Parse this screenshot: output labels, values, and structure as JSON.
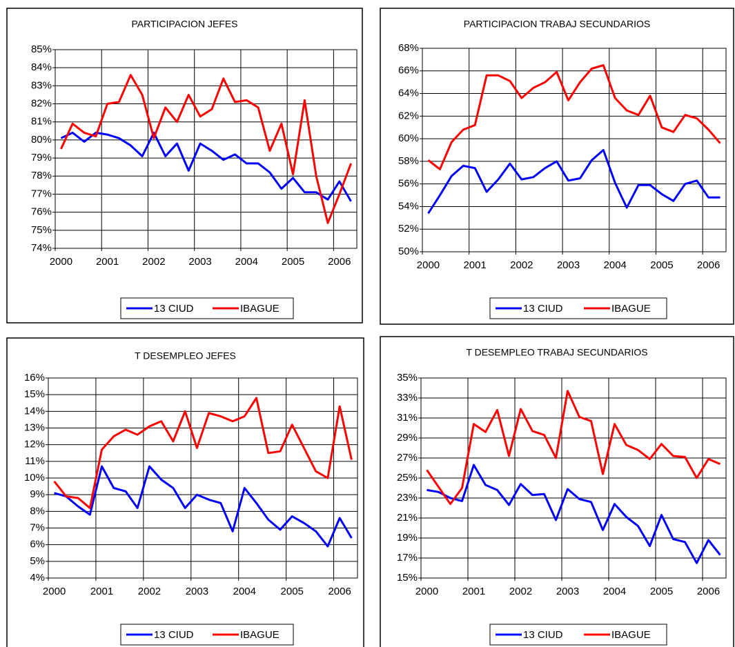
{
  "chart_data": [
    {
      "type": "line",
      "title": "PARTICIPACION JEFES",
      "categories": [
        "2000",
        null,
        null,
        null,
        "2001",
        null,
        null,
        null,
        "2002",
        null,
        null,
        null,
        "2003",
        null,
        null,
        null,
        "2004",
        null,
        null,
        null,
        "2005",
        null,
        null,
        null,
        "2006",
        null
      ],
      "series": [
        {
          "name": "13 CIUD",
          "color": "#0000ff",
          "values": [
            80.1,
            80.4,
            79.9,
            80.4,
            80.3,
            80.1,
            79.7,
            79.1,
            80.4,
            79.1,
            79.8,
            78.3,
            79.8,
            79.4,
            78.9,
            79.2,
            78.7,
            78.7,
            78.2,
            77.3,
            77.9,
            77.1,
            77.1,
            76.7,
            77.7,
            76.6
          ]
        },
        {
          "name": "IBAGUE",
          "color": "#ff0000",
          "values": [
            79.5,
            80.9,
            80.4,
            80.2,
            82.0,
            82.1,
            83.6,
            82.5,
            80.1,
            81.8,
            81.0,
            82.5,
            81.3,
            81.7,
            83.4,
            82.1,
            82.2,
            81.8,
            79.4,
            80.9,
            78.1,
            82.2,
            78.0,
            75.4,
            77.0,
            78.7
          ]
        }
      ],
      "ylim": [
        74,
        85
      ],
      "yticks": [
        {
          "value": 74,
          "label": "74%"
        },
        {
          "value": 75,
          "label": "75%"
        },
        {
          "value": 76,
          "label": "76%"
        },
        {
          "value": 77,
          "label": "77%"
        },
        {
          "value": 78,
          "label": "78%"
        },
        {
          "value": 79,
          "label": "79%"
        },
        {
          "value": 80,
          "label": "80%"
        },
        {
          "value": 81,
          "label": "81%"
        },
        {
          "value": 82,
          "label": "82%"
        },
        {
          "value": 83,
          "label": "83%"
        },
        {
          "value": 84,
          "label": "84%"
        },
        {
          "value": 85,
          "label": "85%"
        }
      ],
      "grid": true,
      "legend": "bottom"
    },
    {
      "type": "line",
      "title": "PARTICIPACION TRABAJ SECUNDARIOS",
      "categories": [
        "2000",
        null,
        null,
        null,
        "2001",
        null,
        null,
        null,
        "2002",
        null,
        null,
        null,
        "2003",
        null,
        null,
        null,
        "2004",
        null,
        null,
        null,
        "2005",
        null,
        null,
        null,
        "2006",
        null
      ],
      "series": [
        {
          "name": "13 CIUD",
          "color": "#0000ff",
          "values": [
            53.4,
            55.0,
            56.7,
            57.6,
            57.4,
            55.3,
            56.4,
            57.8,
            56.4,
            56.6,
            57.4,
            58.0,
            56.3,
            56.5,
            58.1,
            59.0,
            56.1,
            53.9,
            55.9,
            55.9,
            55.1,
            54.5,
            56.0,
            56.3,
            54.8,
            54.8
          ]
        },
        {
          "name": "IBAGUE",
          "color": "#ff0000",
          "values": [
            58.1,
            57.3,
            59.7,
            60.8,
            61.2,
            65.6,
            65.6,
            65.1,
            63.6,
            64.5,
            65.0,
            65.9,
            63.4,
            65.0,
            66.2,
            66.5,
            63.6,
            62.5,
            62.1,
            63.8,
            61.0,
            60.6,
            62.1,
            61.8,
            60.8,
            59.6
          ]
        }
      ],
      "ylim": [
        50,
        68
      ],
      "yticks": [
        {
          "value": 50,
          "label": "50%"
        },
        {
          "value": 52,
          "label": "52%"
        },
        {
          "value": 54,
          "label": "54%"
        },
        {
          "value": 56,
          "label": "56%"
        },
        {
          "value": 58,
          "label": "58%"
        },
        {
          "value": 60,
          "label": "60%"
        },
        {
          "value": 62,
          "label": "62%"
        },
        {
          "value": 64,
          "label": "64%"
        },
        {
          "value": 66,
          "label": "66%"
        },
        {
          "value": 68,
          "label": "68%"
        }
      ],
      "grid": true,
      "legend": "bottom"
    },
    {
      "type": "line",
      "title": "T DESEMPLEO JEFES",
      "categories": [
        "2000",
        null,
        null,
        null,
        "2001",
        null,
        null,
        null,
        "2002",
        null,
        null,
        null,
        "2003",
        null,
        null,
        null,
        "2004",
        null,
        null,
        null,
        "2005",
        null,
        null,
        null,
        "2006",
        null
      ],
      "series": [
        {
          "name": "13 CIUD",
          "color": "#0000ff",
          "values": [
            9.1,
            8.9,
            8.3,
            7.8,
            10.7,
            9.4,
            9.2,
            8.2,
            10.7,
            9.9,
            9.4,
            8.2,
            9.0,
            8.7,
            8.5,
            6.8,
            9.4,
            8.5,
            7.5,
            6.9,
            7.7,
            7.3,
            6.8,
            5.9,
            7.6,
            6.4
          ]
        },
        {
          "name": "IBAGUE",
          "color": "#ff0000",
          "values": [
            9.8,
            8.9,
            8.8,
            8.2,
            11.7,
            12.5,
            12.9,
            12.6,
            13.1,
            13.4,
            12.2,
            14.0,
            11.8,
            13.9,
            13.7,
            13.4,
            13.7,
            14.8,
            11.5,
            11.6,
            13.2,
            11.8,
            10.4,
            10.0,
            14.3,
            11.1
          ]
        }
      ],
      "ylim": [
        4,
        16
      ],
      "yticks": [
        {
          "value": 4,
          "label": "4%"
        },
        {
          "value": 5,
          "label": "5%"
        },
        {
          "value": 6,
          "label": "6%"
        },
        {
          "value": 7,
          "label": "7%"
        },
        {
          "value": 8,
          "label": "8%"
        },
        {
          "value": 9,
          "label": "9%"
        },
        {
          "value": 10,
          "label": "10%"
        },
        {
          "value": 11,
          "label": "11%"
        },
        {
          "value": 12,
          "label": "12%"
        },
        {
          "value": 13,
          "label": "13%"
        },
        {
          "value": 14,
          "label": "14%"
        },
        {
          "value": 15,
          "label": "15%"
        },
        {
          "value": 16,
          "label": "16%"
        }
      ],
      "grid": true,
      "legend": "bottom"
    },
    {
      "type": "line",
      "title": "T DESEMPLEO TRABAJ SECUNDARIOS",
      "categories": [
        "2000",
        null,
        null,
        null,
        "2001",
        null,
        null,
        null,
        "2002",
        null,
        null,
        null,
        "2003",
        null,
        null,
        null,
        "2004",
        null,
        null,
        null,
        "2005",
        null,
        null,
        null,
        "2006",
        null
      ],
      "series": [
        {
          "name": "13 CIUD",
          "color": "#0000ff",
          "values": [
            23.8,
            23.6,
            23.0,
            22.7,
            26.3,
            24.3,
            23.8,
            22.3,
            24.4,
            23.3,
            23.4,
            20.8,
            23.9,
            22.9,
            22.6,
            19.8,
            22.4,
            21.1,
            20.2,
            18.2,
            21.3,
            18.9,
            18.6,
            16.5,
            18.8,
            17.3
          ]
        },
        {
          "name": "IBAGUE",
          "color": "#ff0000",
          "values": [
            25.8,
            24.1,
            22.4,
            24.0,
            30.4,
            29.6,
            31.8,
            27.2,
            31.9,
            29.7,
            29.3,
            27.0,
            33.7,
            31.1,
            30.7,
            25.4,
            30.4,
            28.3,
            27.8,
            26.9,
            28.4,
            27.2,
            27.1,
            25.0,
            26.9,
            26.4
          ]
        }
      ],
      "ylim": [
        15,
        35
      ],
      "yticks": [
        {
          "value": 15,
          "label": "15%"
        },
        {
          "value": 17,
          "label": "17%"
        },
        {
          "value": 19,
          "label": "19%"
        },
        {
          "value": 21,
          "label": "21%"
        },
        {
          "value": 23,
          "label": "23%"
        },
        {
          "value": 25,
          "label": "25%"
        },
        {
          "value": 27,
          "label": "27%"
        },
        {
          "value": 29,
          "label": "29%"
        },
        {
          "value": 31,
          "label": "31%"
        },
        {
          "value": 33,
          "label": "33%"
        },
        {
          "value": 35,
          "label": "35%"
        }
      ],
      "grid": true,
      "legend": "bottom"
    }
  ]
}
